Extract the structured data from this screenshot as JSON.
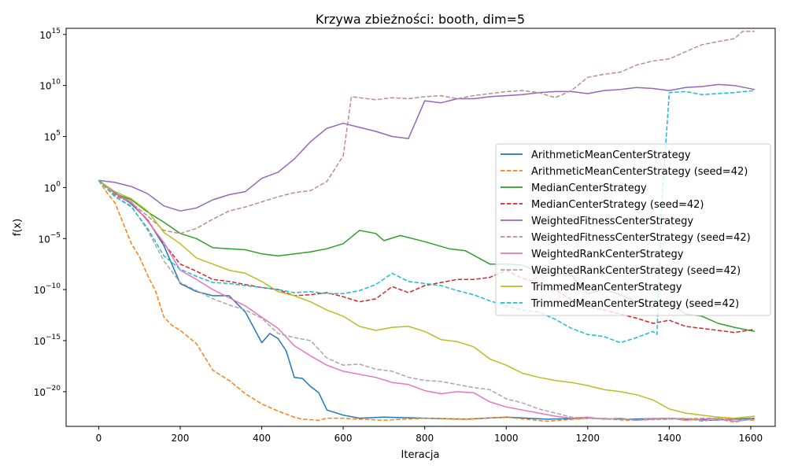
{
  "chart_data": {
    "type": "line",
    "title": "Krzywa zbieżności: booth, dim=5",
    "xlabel": "Iteracja",
    "ylabel": "f(x)",
    "yscale": "log",
    "xlim": [
      -80,
      1660
    ],
    "ylim_log10": [
      -23.4,
      15.6
    ],
    "xticks": [
      0,
      200,
      400,
      600,
      800,
      1000,
      1200,
      1400,
      1600
    ],
    "yticks_log10": [
      -20,
      -15,
      -10,
      -5,
      0,
      5,
      10,
      15
    ],
    "ytick_labels": [
      {
        "base": "10",
        "exp": "−20"
      },
      {
        "base": "10",
        "exp": "−15"
      },
      {
        "base": "10",
        "exp": "−10"
      },
      {
        "base": "10",
        "exp": "−5"
      },
      {
        "base": "10",
        "exp": "0"
      },
      {
        "base": "10",
        "exp": "5"
      },
      {
        "base": "10",
        "exp": "10"
      },
      {
        "base": "10",
        "exp": "15"
      }
    ],
    "grid": false,
    "legend_position": "center-right",
    "series": [
      {
        "name": "ArithmeticMeanCenterStrategy",
        "color": "#1f77b4",
        "dash": "solid",
        "x": [
          0,
          40,
          80,
          120,
          160,
          200,
          240,
          280,
          320,
          360,
          400,
          420,
          440,
          460,
          480,
          500,
          520,
          540,
          560,
          600,
          640,
          700,
          800,
          900,
          1000,
          1100,
          1200,
          1300,
          1400,
          1500,
          1610
        ],
        "y_log10": [
          0.7,
          -0.5,
          -1.6,
          -3.2,
          -5.7,
          -9.4,
          -10.2,
          -10.6,
          -10.6,
          -12.2,
          -15.2,
          -14.3,
          -14.8,
          -16.0,
          -18.6,
          -18.7,
          -19.5,
          -20.1,
          -21.8,
          -22.3,
          -22.6,
          -22.5,
          -22.6,
          -22.7,
          -22.5,
          -22.7,
          -22.6,
          -22.7,
          -22.6,
          -22.8,
          -22.6
        ]
      },
      {
        "name": "ArithmeticMeanCenterStrategy (seed=42)",
        "color": "#ff7f0e",
        "dash": "dashed",
        "x": [
          0,
          20,
          40,
          60,
          80,
          100,
          120,
          140,
          160,
          180,
          200,
          240,
          280,
          320,
          360,
          400,
          440,
          480,
          500,
          540,
          560,
          600,
          640,
          700,
          800,
          900,
          1000,
          1100,
          1200,
          1300,
          1400,
          1500,
          1610
        ],
        "y_log10": [
          0.7,
          -0.5,
          -1.5,
          -3.5,
          -5.5,
          -6.8,
          -8.6,
          -10.2,
          -12.7,
          -13.5,
          -14.0,
          -15.3,
          -17.9,
          -18.9,
          -20.2,
          -21.2,
          -21.9,
          -22.5,
          -22.7,
          -22.8,
          -22.6,
          -22.6,
          -22.7,
          -22.8,
          -22.6,
          -22.7,
          -22.5,
          -22.9,
          -22.6,
          -22.8,
          -22.7,
          -22.6,
          -22.8
        ]
      },
      {
        "name": "MedianCenterStrategy",
        "color": "#2ca02c",
        "dash": "solid",
        "x": [
          0,
          40,
          80,
          120,
          160,
          200,
          240,
          280,
          320,
          360,
          400,
          440,
          480,
          520,
          560,
          600,
          640,
          680,
          700,
          740,
          800,
          860,
          900,
          960,
          1000,
          1040,
          1080,
          1120,
          1160,
          1200,
          1240,
          1280,
          1320,
          1360,
          1400,
          1440,
          1480,
          1520,
          1560,
          1610
        ],
        "y_log10": [
          0.7,
          -0.6,
          -1.2,
          -2.4,
          -3.4,
          -4.5,
          -5.0,
          -5.9,
          -6.0,
          -6.1,
          -6.5,
          -6.7,
          -6.5,
          -6.3,
          -6.0,
          -5.5,
          -4.2,
          -4.5,
          -5.2,
          -4.7,
          -5.3,
          -6.0,
          -6.2,
          -7.5,
          -7.5,
          -7.6,
          -8.3,
          -8.4,
          -8.6,
          -10.4,
          -10.0,
          -10.5,
          -11.2,
          -11.7,
          -11.2,
          -12.4,
          -12.6,
          -13.3,
          -13.7,
          -14.1
        ]
      },
      {
        "name": "MedianCenterStrategy (seed=42)",
        "color": "#d62728",
        "dash": "dashed",
        "x": [
          0,
          40,
          80,
          120,
          160,
          200,
          240,
          280,
          320,
          360,
          400,
          440,
          480,
          520,
          560,
          600,
          640,
          680,
          720,
          760,
          800,
          840,
          880,
          920,
          960,
          1000,
          1040,
          1080,
          1120,
          1160,
          1200,
          1240,
          1280,
          1320,
          1360,
          1400,
          1440,
          1480,
          1520,
          1560,
          1610
        ],
        "y_log10": [
          0.7,
          -0.7,
          -1.5,
          -3.2,
          -5.5,
          -7.5,
          -8.2,
          -9.0,
          -9.2,
          -9.5,
          -9.8,
          -10.0,
          -10.6,
          -10.5,
          -10.3,
          -10.7,
          -11.2,
          -10.9,
          -9.7,
          -10.3,
          -9.6,
          -9.3,
          -9.0,
          -9.0,
          -8.8,
          -8.1,
          -8.9,
          -9.3,
          -10.0,
          -11.0,
          -11.7,
          -12.0,
          -12.4,
          -12.8,
          -13.3,
          -13.0,
          -13.6,
          -13.8,
          -14.0,
          -14.2,
          -13.9
        ]
      },
      {
        "name": "WeightedFitnessCenterStrategy",
        "color": "#9467bd",
        "dash": "solid",
        "x": [
          0,
          40,
          80,
          120,
          160,
          200,
          240,
          280,
          320,
          360,
          400,
          440,
          480,
          520,
          560,
          600,
          640,
          680,
          720,
          760,
          800,
          840,
          880,
          920,
          960,
          1000,
          1040,
          1080,
          1120,
          1160,
          1200,
          1240,
          1280,
          1320,
          1360,
          1400,
          1440,
          1480,
          1520,
          1560,
          1610
        ],
        "y_log10": [
          0.7,
          0.5,
          0.1,
          -0.6,
          -1.8,
          -2.3,
          -2.0,
          -1.2,
          -0.7,
          -0.4,
          0.9,
          1.5,
          2.8,
          4.5,
          5.8,
          6.3,
          5.9,
          5.5,
          5.0,
          4.8,
          8.5,
          8.3,
          8.7,
          8.7,
          8.9,
          9.0,
          9.1,
          9.3,
          9.4,
          9.4,
          9.2,
          9.5,
          9.6,
          9.8,
          9.7,
          9.5,
          9.8,
          9.9,
          10.1,
          10.0,
          9.6
        ]
      },
      {
        "name": "WeightedFitnessCenterStrategy (seed=42)",
        "color": "#bc8f85",
        "dash": "dashed",
        "x": [
          0,
          40,
          80,
          120,
          160,
          200,
          240,
          280,
          320,
          360,
          400,
          440,
          480,
          520,
          560,
          600,
          620,
          680,
          720,
          760,
          800,
          840,
          880,
          920,
          960,
          1000,
          1040,
          1080,
          1120,
          1160,
          1200,
          1240,
          1280,
          1320,
          1360,
          1400,
          1440,
          1480,
          1520,
          1560,
          1580,
          1610
        ],
        "y_log10": [
          0.7,
          -0.8,
          -1.5,
          -2.8,
          -4.2,
          -4.5,
          -4.0,
          -3.1,
          -2.3,
          -1.9,
          -1.4,
          -0.9,
          -0.5,
          -0.3,
          0.6,
          3.1,
          8.9,
          8.6,
          8.8,
          8.7,
          8.9,
          9.0,
          8.7,
          9.0,
          9.2,
          9.4,
          9.5,
          9.3,
          8.8,
          9.5,
          10.8,
          11.1,
          11.3,
          12.0,
          12.4,
          12.6,
          13.3,
          14.0,
          14.3,
          14.6,
          15.3,
          15.3
        ]
      },
      {
        "name": "WeightedRankCenterStrategy",
        "color": "#e377c2",
        "dash": "solid",
        "x": [
          0,
          40,
          80,
          120,
          160,
          200,
          240,
          280,
          320,
          360,
          400,
          440,
          480,
          520,
          560,
          600,
          640,
          680,
          720,
          760,
          800,
          840,
          880,
          920,
          960,
          1000,
          1040,
          1080,
          1120,
          1160,
          1200,
          1240,
          1280,
          1320,
          1360,
          1400,
          1440,
          1480,
          1520,
          1560,
          1610
        ],
        "y_log10": [
          0.7,
          -0.6,
          -1.4,
          -3.3,
          -5.4,
          -8.1,
          -9.0,
          -10.0,
          -10.8,
          -11.6,
          -12.7,
          -13.8,
          -15.5,
          -16.5,
          -17.4,
          -18.0,
          -18.3,
          -18.6,
          -19.1,
          -19.3,
          -19.9,
          -20.2,
          -20.0,
          -20.1,
          -21.0,
          -21.5,
          -21.8,
          -22.1,
          -22.4,
          -22.6,
          -22.5,
          -22.7,
          -22.6,
          -22.8,
          -22.7,
          -22.6,
          -22.8,
          -22.7,
          -22.6,
          -22.9,
          -22.7
        ]
      },
      {
        "name": "WeightedRankCenterStrategy (seed=42)",
        "color": "#a7a7a7",
        "dash": "dashed",
        "x": [
          0,
          40,
          80,
          120,
          160,
          200,
          240,
          280,
          320,
          360,
          400,
          440,
          480,
          520,
          560,
          600,
          640,
          680,
          720,
          760,
          800,
          840,
          880,
          920,
          960,
          1000,
          1040,
          1080,
          1120,
          1160,
          1200,
          1240,
          1280,
          1320,
          1360,
          1400,
          1440,
          1480,
          1520,
          1560,
          1610
        ],
        "y_log10": [
          0.7,
          -0.9,
          -1.8,
          -4.2,
          -7.2,
          -9.3,
          -10.1,
          -10.9,
          -11.5,
          -12.0,
          -12.8,
          -14.3,
          -14.7,
          -15.0,
          -16.7,
          -17.4,
          -17.3,
          -17.8,
          -18.0,
          -18.6,
          -18.9,
          -19.0,
          -19.3,
          -19.6,
          -19.8,
          -20.7,
          -21.1,
          -21.7,
          -22.1,
          -22.5,
          -22.6,
          -22.7,
          -22.6,
          -22.8,
          -22.6,
          -22.7,
          -22.6,
          -22.9,
          -22.7,
          -23.0,
          -22.6
        ]
      },
      {
        "name": "TrimmedMeanCenterStrategy",
        "color": "#bcbd22",
        "dash": "solid",
        "x": [
          0,
          40,
          80,
          120,
          160,
          200,
          240,
          280,
          320,
          360,
          400,
          440,
          480,
          520,
          560,
          600,
          640,
          680,
          720,
          760,
          800,
          840,
          880,
          920,
          960,
          1000,
          1040,
          1080,
          1120,
          1160,
          1200,
          1240,
          1280,
          1320,
          1360,
          1400,
          1440,
          1480,
          1520,
          1560,
          1610
        ],
        "y_log10": [
          0.7,
          -0.4,
          -1.1,
          -2.3,
          -4.4,
          -5.5,
          -6.9,
          -7.5,
          -8.1,
          -8.4,
          -9.2,
          -10.2,
          -10.6,
          -11.2,
          -12.0,
          -12.6,
          -13.6,
          -14.0,
          -13.7,
          -13.6,
          -14.1,
          -14.9,
          -15.1,
          -15.6,
          -16.8,
          -17.4,
          -18.2,
          -18.6,
          -18.9,
          -19.1,
          -19.4,
          -19.8,
          -20.0,
          -20.3,
          -20.8,
          -21.7,
          -22.1,
          -22.3,
          -22.5,
          -22.6,
          -22.4
        ]
      },
      {
        "name": "TrimmedMeanCenterStrategy (seed=42)",
        "color": "#17becf",
        "dash": "dashed",
        "x": [
          0,
          40,
          80,
          120,
          160,
          200,
          240,
          280,
          320,
          360,
          400,
          440,
          480,
          520,
          560,
          600,
          640,
          680,
          720,
          760,
          800,
          840,
          880,
          920,
          960,
          1000,
          1040,
          1080,
          1120,
          1160,
          1200,
          1240,
          1280,
          1320,
          1360,
          1370,
          1380,
          1400,
          1440,
          1480,
          1520,
          1560,
          1610
        ],
        "y_log10": [
          0.7,
          -0.9,
          -1.9,
          -4.0,
          -6.7,
          -8.0,
          -8.7,
          -9.3,
          -9.4,
          -9.6,
          -9.8,
          -10.0,
          -10.3,
          -10.2,
          -10.4,
          -10.4,
          -10.1,
          -9.5,
          -8.4,
          -9.2,
          -9.4,
          -9.6,
          -10.1,
          -10.5,
          -11.1,
          -11.6,
          -12.0,
          -12.2,
          -12.9,
          -13.8,
          -14.4,
          -14.6,
          -15.2,
          -14.7,
          -14.1,
          -14.4,
          -2.5,
          9.3,
          9.4,
          9.1,
          9.2,
          9.3,
          9.5
        ]
      }
    ]
  }
}
